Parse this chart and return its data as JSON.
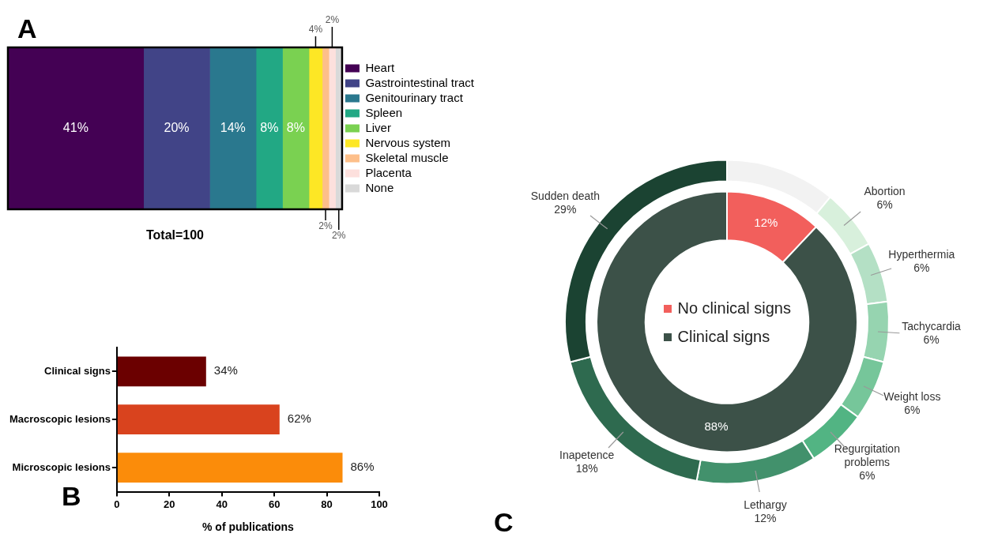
{
  "chart_data": [
    {
      "type": "bar",
      "orientation": "horizontal",
      "stacked": true,
      "categories": [
        null
      ],
      "legend": "right",
      "annotations": [
        "A",
        "Total=100"
      ],
      "series": [
        {
          "name": "Heart",
          "color": "#440154",
          "values": [
            41
          ],
          "value_labels": [
            "41%"
          ]
        },
        {
          "name": "Gastrointestinal tract",
          "color": "#414487",
          "values": [
            20
          ],
          "value_labels": [
            "20%"
          ]
        },
        {
          "name": "Genitourinary tract",
          "color": "#2a788e",
          "values": [
            14
          ],
          "value_labels": [
            "14%"
          ]
        },
        {
          "name": "Spleen",
          "color": "#22a884",
          "values": [
            8
          ],
          "value_labels": [
            "8%"
          ]
        },
        {
          "name": "Liver",
          "color": "#7ad151",
          "values": [
            8
          ],
          "value_labels": [
            "8%"
          ]
        },
        {
          "name": "Nervous system",
          "color": "#fde725",
          "values": [
            4
          ],
          "value_labels": [
            "4%"
          ]
        },
        {
          "name": "Skeletal muscle",
          "color": "#fdbf8a",
          "values": [
            2
          ],
          "value_labels": [
            "2%"
          ]
        },
        {
          "name": "Placenta",
          "color": "#fde0dd",
          "values": [
            2
          ],
          "value_labels": [
            "2%"
          ]
        },
        {
          "name": "None",
          "color": "#d9d9d9",
          "values": [
            2
          ],
          "value_labels": [
            "2%"
          ]
        }
      ]
    },
    {
      "type": "bar",
      "orientation": "horizontal",
      "categories": [
        "Clinical signs",
        "Macroscopic lesions",
        "Microscopic lesions"
      ],
      "values": [
        34,
        62,
        86
      ],
      "colors": [
        "#6b0000",
        "#d9431e",
        "#fb8c0a"
      ],
      "value_labels": [
        "34%",
        "62%",
        "86%"
      ],
      "xlim": [
        0,
        100
      ],
      "xticks": [
        0,
        20,
        40,
        60,
        80,
        100
      ],
      "xlabel": "% of publications",
      "annotations": [
        "B"
      ]
    },
    {
      "type": "donut",
      "legend": "center",
      "categories": [
        "No clinical signs",
        "Clinical signs"
      ],
      "colors": [
        "#f25f5c",
        "#3c5148"
      ],
      "values": [
        12,
        88
      ],
      "value_labels": [
        "12%",
        "88%"
      ]
    },
    {
      "type": "donut",
      "annotations": [
        "C"
      ],
      "categories": [
        null,
        "Abortion",
        "Hyperthermia",
        "Tachycardia",
        "Weight loss",
        "Regurgitation problems",
        "Lethargy",
        "Inapetence",
        "Sudden death"
      ],
      "colors": [
        "#f2f2f2",
        "#d8f0dc",
        "#b4e0c5",
        "#96d4b0",
        "#76c69a",
        "#52b483",
        "#42916c",
        "#2e6a4f",
        "#1b4332"
      ],
      "values": [
        11,
        6,
        6,
        6,
        6,
        6,
        12,
        18,
        29
      ],
      "value_labels": [
        null,
        "6%",
        "6%",
        "6%",
        "6%",
        "6%",
        "12%",
        "18%",
        "29%"
      ]
    }
  ]
}
